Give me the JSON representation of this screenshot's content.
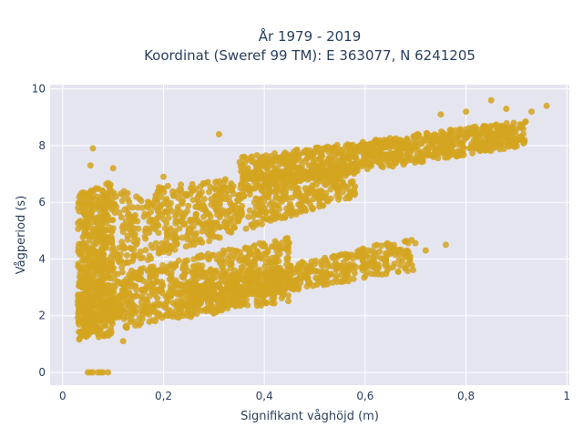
{
  "chart_data": {
    "type": "scatter",
    "title_line1": "År 1979 - 2019",
    "title_line2": "Koordinat (Sweref 99 TM): E 363077, N 6241205",
    "xlabel": "Signifikant våghöjd (m)",
    "ylabel": "Vågperiod (s)",
    "xlim": [
      -0.025,
      1.005
    ],
    "ylim": [
      -0.45,
      10.15
    ],
    "x_ticks": [
      0,
      0.2,
      0.4,
      0.6,
      0.8,
      1
    ],
    "x_tick_labels": [
      "0",
      "0,2",
      "0,4",
      "0,6",
      "0,8",
      "1"
    ],
    "y_ticks": [
      0,
      2,
      4,
      6,
      8,
      10
    ],
    "y_tick_labels": [
      "0",
      "2",
      "4",
      "6",
      "8",
      "10"
    ],
    "grid": true,
    "colors": {
      "marker": "#d4a520",
      "plot_background": "#e5e5f0",
      "gridline": "#ffffff"
    },
    "series": [
      {
        "clusters": [
          {
            "x": [
              0.03,
              0.58
            ],
            "y_low": [
              3.2,
              6.2
            ],
            "y_high": [
              6.2,
              7.4
            ],
            "n": 900
          },
          {
            "x": [
              0.35,
              0.92
            ],
            "y_low": [
              6.4,
              8.0
            ],
            "y_high": [
              7.6,
              8.9
            ],
            "n": 900
          },
          {
            "x": [
              0.03,
              0.45
            ],
            "y_low": [
              1.3,
              2.5
            ],
            "y_high": [
              3.2,
              4.8
            ],
            "n": 900
          },
          {
            "x": [
              0.25,
              0.7
            ],
            "y_low": [
              2.3,
              3.6
            ],
            "y_high": [
              3.0,
              4.8
            ],
            "n": 500
          },
          {
            "x": [
              0.03,
              0.1
            ],
            "y_low": [
              1.1,
              1.3
            ],
            "y_high": [
              6.3,
              6.8
            ],
            "n": 400
          }
        ],
        "points": [
          {
            "x": 0.06,
            "y": 7.9
          },
          {
            "x": 0.31,
            "y": 8.4
          },
          {
            "x": 0.85,
            "y": 9.6
          },
          {
            "x": 0.96,
            "y": 9.4
          },
          {
            "x": 0.93,
            "y": 9.2
          },
          {
            "x": 0.88,
            "y": 9.3
          },
          {
            "x": 0.8,
            "y": 9.2
          },
          {
            "x": 0.75,
            "y": 9.1
          },
          {
            "x": 0.05,
            "y": 0
          },
          {
            "x": 0.06,
            "y": 0
          },
          {
            "x": 0.07,
            "y": 0
          },
          {
            "x": 0.08,
            "y": 0
          },
          {
            "x": 0.055,
            "y": 0
          },
          {
            "x": 0.075,
            "y": 0
          },
          {
            "x": 0.09,
            "y": 0
          },
          {
            "x": 0.65,
            "y": 4.4
          },
          {
            "x": 0.76,
            "y": 4.5
          },
          {
            "x": 0.72,
            "y": 4.3
          },
          {
            "x": 0.5,
            "y": 7.3
          },
          {
            "x": 0.2,
            "y": 6.9
          },
          {
            "x": 0.1,
            "y": 7.2
          },
          {
            "x": 0.055,
            "y": 7.3
          },
          {
            "x": 0.04,
            "y": 1.3
          },
          {
            "x": 0.12,
            "y": 1.1
          }
        ]
      }
    ]
  }
}
